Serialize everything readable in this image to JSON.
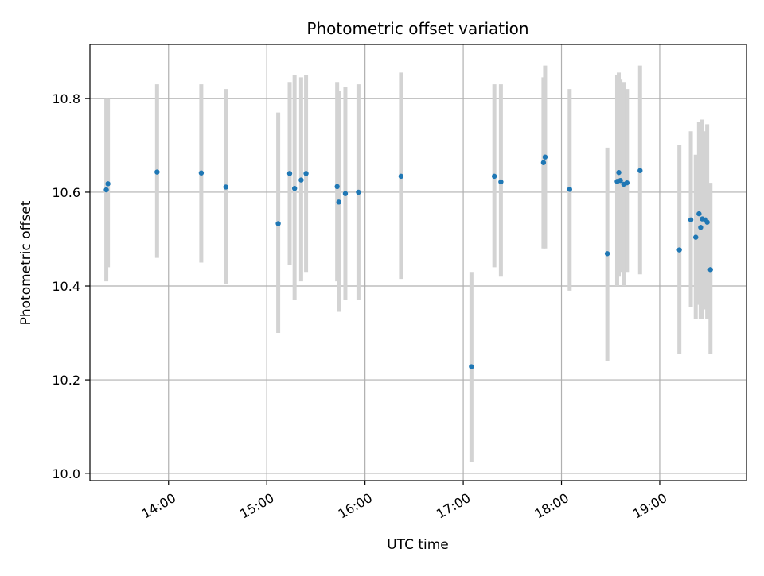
{
  "chart_data": {
    "type": "scatter",
    "title": "Photometric offset variation",
    "xlabel": "UTC time",
    "ylabel": "Photometric offset",
    "xlim": [
      "13:12",
      "19:53"
    ],
    "ylim": [
      9.985,
      10.915
    ],
    "xticks": [
      "14:00",
      "15:00",
      "16:00",
      "17:00",
      "18:00",
      "19:00"
    ],
    "yticks": [
      10.0,
      10.2,
      10.4,
      10.6,
      10.8
    ],
    "grid": true,
    "legend": "none",
    "marker_color": "#1f77b4",
    "errorbar_color": "#d3d3d3",
    "points": [
      {
        "t": "13:22",
        "y": 10.605,
        "lo": 10.41,
        "hi": 10.8
      },
      {
        "t": "13:23",
        "y": 10.618,
        "lo": 10.44,
        "hi": 10.8
      },
      {
        "t": "13:53",
        "y": 10.643,
        "lo": 10.46,
        "hi": 10.83
      },
      {
        "t": "14:20",
        "y": 10.641,
        "lo": 10.45,
        "hi": 10.83
      },
      {
        "t": "14:35",
        "y": 10.611,
        "lo": 10.405,
        "hi": 10.82
      },
      {
        "t": "15:07",
        "y": 10.533,
        "lo": 10.3,
        "hi": 10.77
      },
      {
        "t": "15:14",
        "y": 10.64,
        "lo": 10.445,
        "hi": 10.835
      },
      {
        "t": "15:17",
        "y": 10.608,
        "lo": 10.37,
        "hi": 10.85
      },
      {
        "t": "15:21",
        "y": 10.626,
        "lo": 10.41,
        "hi": 10.845
      },
      {
        "t": "15:24",
        "y": 10.64,
        "lo": 10.43,
        "hi": 10.85
      },
      {
        "t": "15:43",
        "y": 10.612,
        "lo": 10.41,
        "hi": 10.835
      },
      {
        "t": "15:44",
        "y": 10.579,
        "lo": 10.345,
        "hi": 10.815
      },
      {
        "t": "15:48",
        "y": 10.597,
        "lo": 10.37,
        "hi": 10.825
      },
      {
        "t": "15:56",
        "y": 10.6,
        "lo": 10.37,
        "hi": 10.83
      },
      {
        "t": "16:22",
        "y": 10.634,
        "lo": 10.415,
        "hi": 10.855
      },
      {
        "t": "17:05",
        "y": 10.228,
        "lo": 10.025,
        "hi": 10.43
      },
      {
        "t": "17:19",
        "y": 10.634,
        "lo": 10.44,
        "hi": 10.83
      },
      {
        "t": "17:23",
        "y": 10.622,
        "lo": 10.42,
        "hi": 10.83
      },
      {
        "t": "17:49",
        "y": 10.663,
        "lo": 10.48,
        "hi": 10.845
      },
      {
        "t": "17:50",
        "y": 10.675,
        "lo": 10.48,
        "hi": 10.87
      },
      {
        "t": "18:05",
        "y": 10.606,
        "lo": 10.39,
        "hi": 10.82
      },
      {
        "t": "18:28",
        "y": 10.469,
        "lo": 10.24,
        "hi": 10.695
      },
      {
        "t": "18:34",
        "y": 10.623,
        "lo": 10.4,
        "hi": 10.85
      },
      {
        "t": "18:35",
        "y": 10.642,
        "lo": 10.42,
        "hi": 10.855
      },
      {
        "t": "18:36",
        "y": 10.625,
        "lo": 10.43,
        "hi": 10.84
      },
      {
        "t": "18:38",
        "y": 10.617,
        "lo": 10.4,
        "hi": 10.835
      },
      {
        "t": "18:40",
        "y": 10.62,
        "lo": 10.43,
        "hi": 10.82
      },
      {
        "t": "18:48",
        "y": 10.646,
        "lo": 10.425,
        "hi": 10.87
      },
      {
        "t": "19:12",
        "y": 10.477,
        "lo": 10.255,
        "hi": 10.7
      },
      {
        "t": "19:19",
        "y": 10.541,
        "lo": 10.355,
        "hi": 10.73
      },
      {
        "t": "19:22",
        "y": 10.504,
        "lo": 10.33,
        "hi": 10.68
      },
      {
        "t": "19:24",
        "y": 10.554,
        "lo": 10.36,
        "hi": 10.75
      },
      {
        "t": "19:25",
        "y": 10.525,
        "lo": 10.33,
        "hi": 10.72
      },
      {
        "t": "19:26",
        "y": 10.543,
        "lo": 10.33,
        "hi": 10.755
      },
      {
        "t": "19:28",
        "y": 10.541,
        "lo": 10.35,
        "hi": 10.73
      },
      {
        "t": "19:29",
        "y": 10.536,
        "lo": 10.33,
        "hi": 10.745
      },
      {
        "t": "19:31",
        "y": 10.435,
        "lo": 10.255,
        "hi": 10.62
      }
    ]
  }
}
